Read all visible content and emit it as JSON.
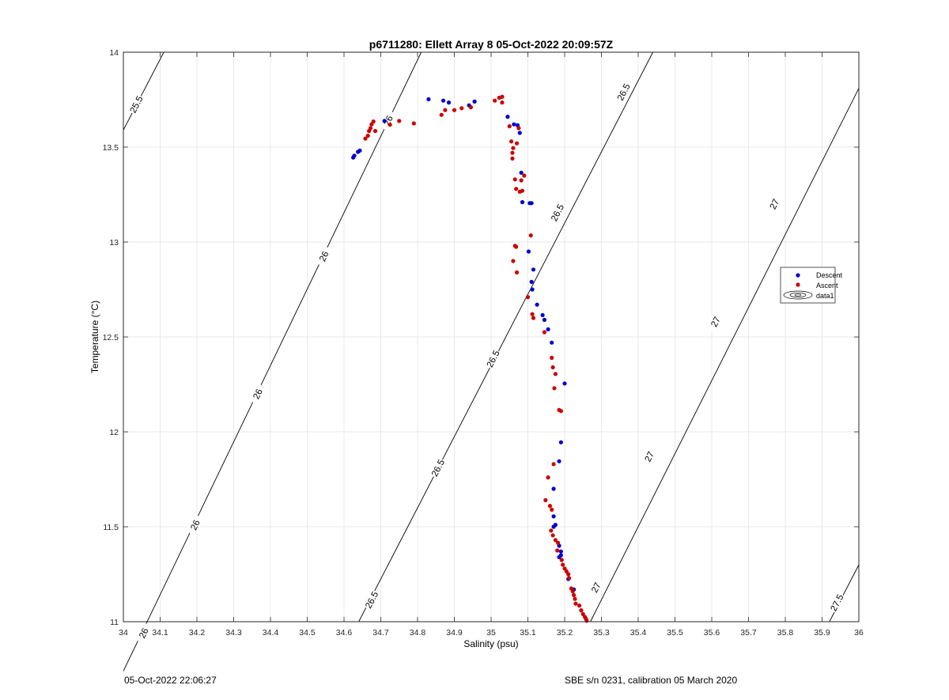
{
  "chart_data": {
    "type": "scatter",
    "title": "p6711280: Ellett Array 8 05-Oct-2022 20:09:57Z",
    "xlabel": "Salinity (psu)",
    "ylabel": "Temperature (°C)",
    "xlim": [
      34,
      36
    ],
    "ylim": [
      11,
      14
    ],
    "grid": true,
    "legend_position": "right",
    "x_ticks": [
      "34",
      "34.1",
      "34.2",
      "34.3",
      "34.4",
      "34.5",
      "34.6",
      "34.7",
      "34.8",
      "34.9",
      "35",
      "35.1",
      "35.2",
      "35.3",
      "35.4",
      "35.5",
      "35.6",
      "35.7",
      "35.8",
      "35.9",
      "36"
    ],
    "y_ticks": [
      "11",
      "11.5",
      "12",
      "12.5",
      "13",
      "13.5",
      "14"
    ],
    "legend": [
      "Descent",
      "Ascent",
      "data1"
    ],
    "series": [
      {
        "name": "Descent",
        "color": "#0000cc",
        "points": [
          [
            34.625,
            13.445
          ],
          [
            34.628,
            13.455
          ],
          [
            34.638,
            13.475
          ],
          [
            34.643,
            13.482
          ],
          [
            34.71,
            13.638
          ],
          [
            34.83,
            13.752
          ],
          [
            34.87,
            13.745
          ],
          [
            34.885,
            13.735
          ],
          [
            34.94,
            13.72
          ],
          [
            34.955,
            13.74
          ],
          [
            35.045,
            13.66
          ],
          [
            35.062,
            13.62
          ],
          [
            35.072,
            13.615
          ],
          [
            35.078,
            13.575
          ],
          [
            35.082,
            13.365
          ],
          [
            35.085,
            13.21
          ],
          [
            35.105,
            13.205
          ],
          [
            35.11,
            13.205
          ],
          [
            35.102,
            12.95
          ],
          [
            35.115,
            12.855
          ],
          [
            35.11,
            12.79
          ],
          [
            35.112,
            12.75
          ],
          [
            35.125,
            12.67
          ],
          [
            35.14,
            12.615
          ],
          [
            35.145,
            12.59
          ],
          [
            35.155,
            12.54
          ],
          [
            35.165,
            12.47
          ],
          [
            35.2,
            12.255
          ],
          [
            35.19,
            11.945
          ],
          [
            35.185,
            11.845
          ],
          [
            35.17,
            11.7
          ],
          [
            35.17,
            11.555
          ],
          [
            35.175,
            11.51
          ],
          [
            35.17,
            11.5
          ],
          [
            35.185,
            11.4
          ],
          [
            35.19,
            11.37
          ],
          [
            35.19,
            11.35
          ],
          [
            35.185,
            11.34
          ],
          [
            35.21,
            11.225
          ],
          [
            35.225,
            11.17
          ]
        ]
      },
      {
        "name": "Ascent",
        "color": "#cc0000",
        "points": [
          [
            34.658,
            13.545
          ],
          [
            34.665,
            13.56
          ],
          [
            34.668,
            13.585
          ],
          [
            34.672,
            13.6
          ],
          [
            34.675,
            13.62
          ],
          [
            34.68,
            13.635
          ],
          [
            34.685,
            13.585
          ],
          [
            34.725,
            13.618
          ],
          [
            34.75,
            13.638
          ],
          [
            34.79,
            13.625
          ],
          [
            34.865,
            13.67
          ],
          [
            34.875,
            13.695
          ],
          [
            34.9,
            13.695
          ],
          [
            34.92,
            13.705
          ],
          [
            34.945,
            13.71
          ],
          [
            35.01,
            13.745
          ],
          [
            35.022,
            13.76
          ],
          [
            35.03,
            13.765
          ],
          [
            35.03,
            13.735
          ],
          [
            35.05,
            13.61
          ],
          [
            35.055,
            13.53
          ],
          [
            35.06,
            13.495
          ],
          [
            35.058,
            13.47
          ],
          [
            35.058,
            13.44
          ],
          [
            35.07,
            13.52
          ],
          [
            35.075,
            13.6
          ],
          [
            35.065,
            13.33
          ],
          [
            35.068,
            13.28
          ],
          [
            35.078,
            13.265
          ],
          [
            35.082,
            13.325
          ],
          [
            35.085,
            13.27
          ],
          [
            35.09,
            13.35
          ],
          [
            35.065,
            12.98
          ],
          [
            35.068,
            12.975
          ],
          [
            35.06,
            12.9
          ],
          [
            35.07,
            12.84
          ],
          [
            35.108,
            13.035
          ],
          [
            35.1,
            12.71
          ],
          [
            35.112,
            12.62
          ],
          [
            35.115,
            12.6
          ],
          [
            35.145,
            12.525
          ],
          [
            35.165,
            12.39
          ],
          [
            35.168,
            12.34
          ],
          [
            35.175,
            12.305
          ],
          [
            35.172,
            12.23
          ],
          [
            35.185,
            12.115
          ],
          [
            35.19,
            12.11
          ],
          [
            35.17,
            11.83
          ],
          [
            35.155,
            11.76
          ],
          [
            35.148,
            11.64
          ],
          [
            35.16,
            11.61
          ],
          [
            35.165,
            11.59
          ],
          [
            35.163,
            11.48
          ],
          [
            35.168,
            11.455
          ],
          [
            35.175,
            11.43
          ],
          [
            35.182,
            11.415
          ],
          [
            35.18,
            11.375
          ],
          [
            35.192,
            11.325
          ],
          [
            35.195,
            11.3
          ],
          [
            35.2,
            11.28
          ],
          [
            35.205,
            11.265
          ],
          [
            35.21,
            11.25
          ],
          [
            35.212,
            11.23
          ],
          [
            35.218,
            11.175
          ],
          [
            35.222,
            11.16
          ],
          [
            35.225,
            11.14
          ],
          [
            35.228,
            11.12
          ],
          [
            35.23,
            11.095
          ],
          [
            35.24,
            11.085
          ],
          [
            35.245,
            11.06
          ],
          [
            35.25,
            11.04
          ],
          [
            35.255,
            11.025
          ],
          [
            35.26,
            11.005
          ],
          [
            35.258,
            11.015
          ]
        ]
      }
    ],
    "isopycnals": [
      {
        "label": "25.5",
        "segment": [
          [
            34.0,
            13.59
          ],
          [
            34.11,
            14.0
          ]
        ],
        "labels_at": [
          [
            34.035,
            13.725
          ]
        ]
      },
      {
        "label": "26",
        "segment": [
          [
            34.0,
            10.74
          ],
          [
            34.81,
            14.0
          ]
        ],
        "labels_at": [
          [
            34.055,
            10.94
          ],
          [
            34.195,
            11.51
          ],
          [
            34.365,
            12.2
          ],
          [
            34.545,
            12.925
          ],
          [
            34.72,
            13.64
          ]
        ]
      },
      {
        "label": "26.5",
        "segment": [
          [
            34.64,
            11.0
          ],
          [
            35.44,
            14.0
          ]
        ],
        "labels_at": [
          [
            34.675,
            11.115
          ],
          [
            34.855,
            11.81
          ],
          [
            35.005,
            12.385
          ],
          [
            35.18,
            13.155
          ],
          [
            35.36,
            13.79
          ]
        ]
      },
      {
        "label": "27",
        "segment": [
          [
            35.27,
            11.0
          ],
          [
            36.0,
            13.81
          ]
        ],
        "labels_at": [
          [
            35.285,
            11.18
          ],
          [
            35.43,
            11.87
          ],
          [
            35.61,
            12.58
          ],
          [
            35.77,
            13.2
          ]
        ]
      },
      {
        "label": "27.5",
        "segment": [
          [
            35.92,
            11.0
          ],
          [
            36.0,
            11.3
          ]
        ],
        "labels_at": [
          [
            35.94,
            11.1
          ]
        ]
      }
    ]
  },
  "footer": {
    "timestamp": "05-Oct-2022 22:06:27",
    "sensor": "SBE s/n 0231, calibration 05 March 2020"
  }
}
